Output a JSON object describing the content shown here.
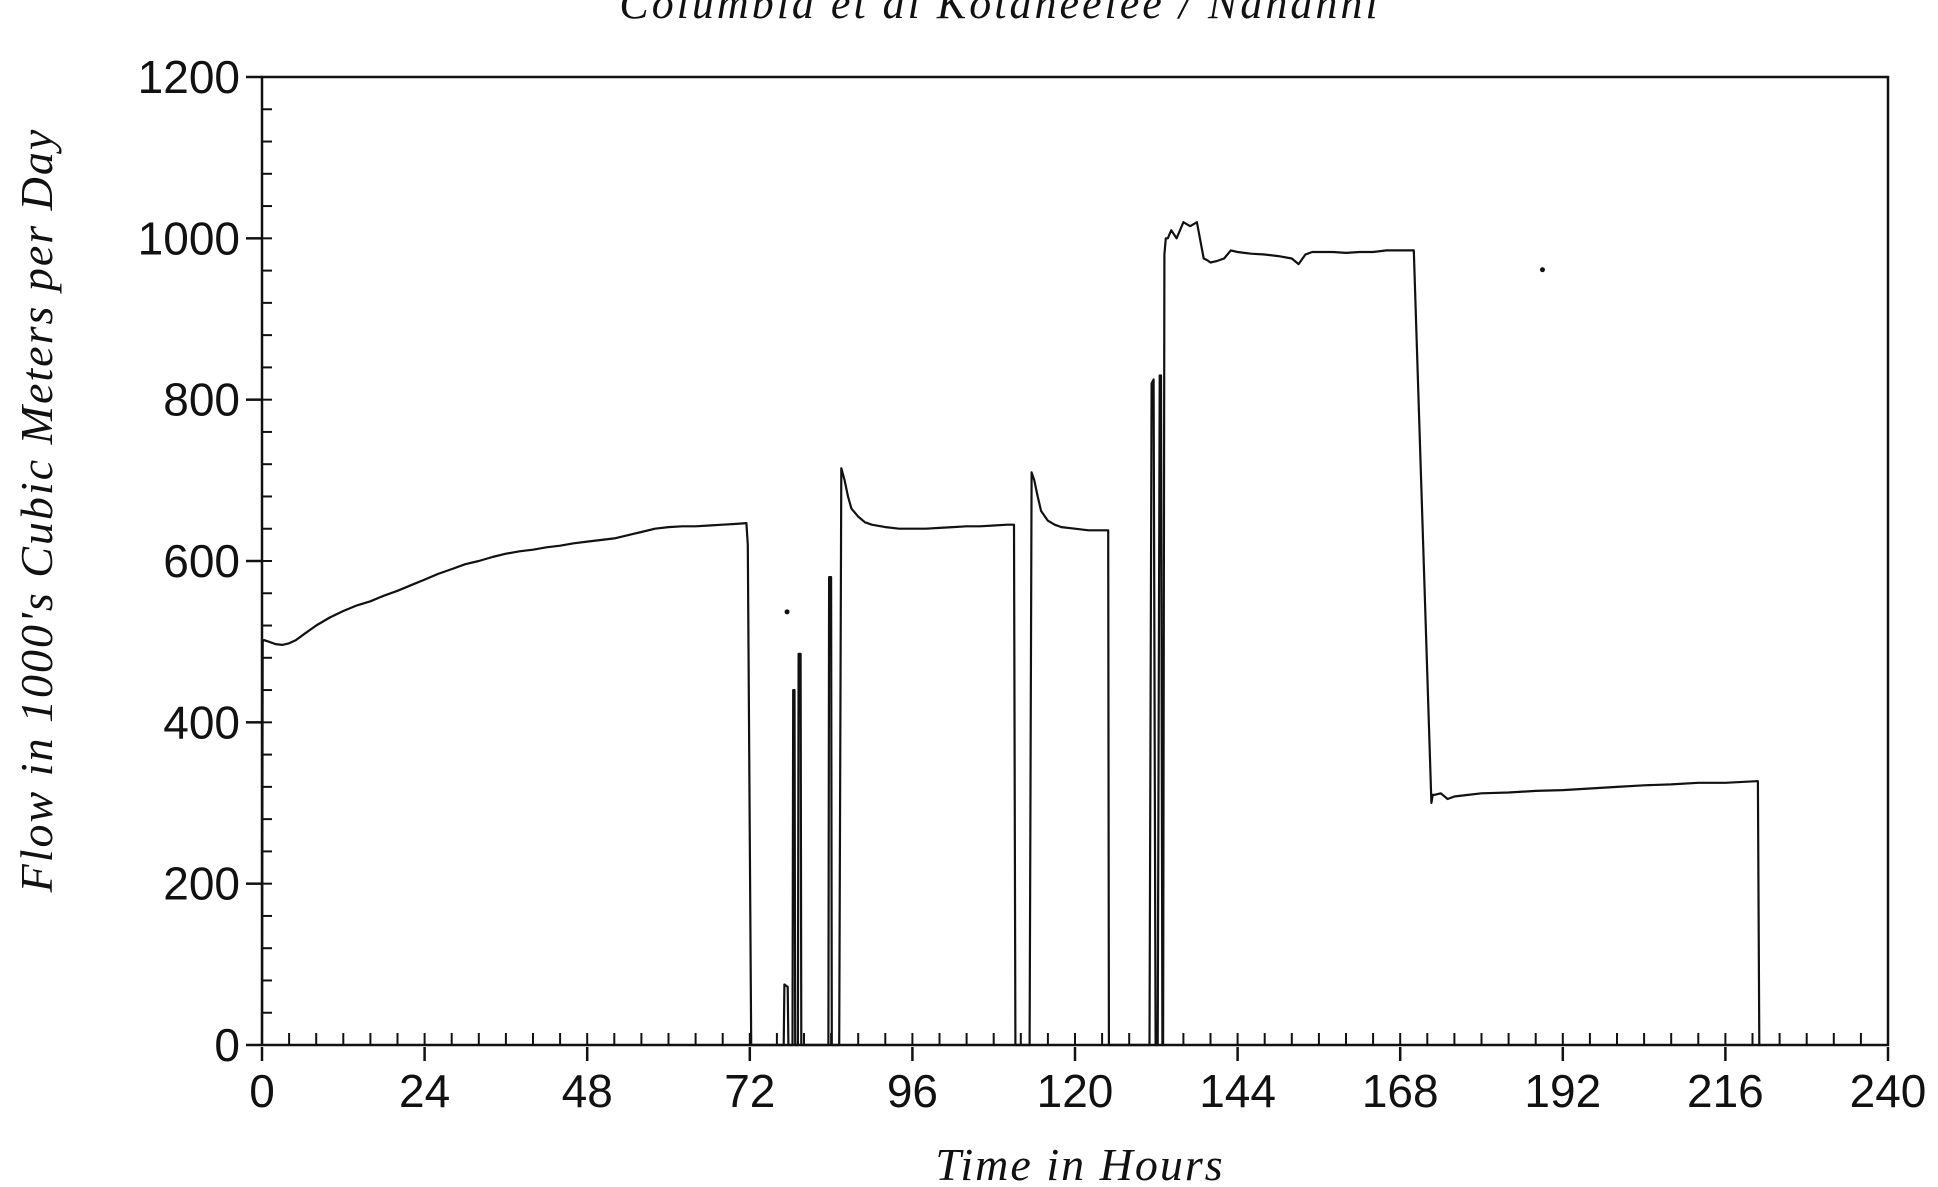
{
  "chart_data": {
    "type": "line",
    "title": "Columbia et al Kotaneelee / Nahanni",
    "xlabel": "Time in Hours",
    "ylabel": "Flow in 1000's Cubic Meters per Day",
    "xlim": [
      0,
      240
    ],
    "ylim": [
      0,
      1200
    ],
    "xticks": [
      0,
      24,
      48,
      72,
      96,
      120,
      144,
      168,
      192,
      216,
      240
    ],
    "yticks": [
      0,
      200,
      400,
      600,
      800,
      1000,
      1200
    ],
    "x_minor_step": 4,
    "y_minor_step": 40,
    "grid": false,
    "legend": "none",
    "colors": {
      "line": "#111111",
      "axis": "#111111",
      "background": "#ffffff"
    },
    "series": [
      {
        "x": [
          0,
          0.1,
          0.3,
          1,
          2,
          3,
          4,
          5,
          6,
          8,
          10,
          12,
          14,
          16,
          18,
          20,
          22,
          24,
          26,
          28,
          30,
          32,
          34,
          36,
          38,
          40,
          42,
          44,
          46,
          48,
          50,
          52,
          54,
          56,
          58,
          60,
          62,
          64,
          66,
          68,
          70,
          71.5,
          71.7,
          72.2,
          72.3,
          77.0,
          77.1,
          77.6,
          77.7,
          78.3,
          78.4,
          78.6,
          78.7,
          79.1,
          79.2,
          79.5,
          79.6,
          79.9,
          80.0,
          83.6,
          83.7,
          84.0,
          84.1,
          85.2,
          85.5,
          86.0,
          86.5,
          87.0,
          88,
          89,
          90,
          92,
          94,
          96,
          98,
          100,
          102,
          104,
          106,
          108,
          110,
          111.0,
          111.2,
          111.5,
          113.3,
          113.6,
          114.0,
          114.5,
          115.0,
          116,
          117,
          118,
          120,
          122,
          123.5,
          124.9,
          125.0,
          125.2,
          131.0,
          131.3,
          131.6,
          131.9,
          132.2,
          132.5,
          132.7,
          132.9,
          133.0,
          133.2,
          133.4,
          133.6,
          133.7,
          134.2,
          134.6,
          135,
          136,
          137,
          138,
          139,
          139.5,
          140,
          141,
          142,
          143,
          144,
          145,
          146,
          148,
          150,
          152,
          153,
          154,
          155,
          156,
          158,
          160,
          162,
          164,
          166,
          168,
          170,
          172.6,
          172.8,
          173.0,
          174,
          175,
          176,
          178,
          180,
          184,
          188,
          192,
          196,
          200,
          204,
          208,
          212,
          216,
          220.6,
          220.8,
          221.0,
          221.2
        ],
        "y": [
          0,
          500,
          502,
          500,
          497,
          496,
          498,
          502,
          508,
          520,
          530,
          538,
          545,
          550,
          557,
          563,
          570,
          577,
          584,
          590,
          596,
          600,
          605,
          609,
          612,
          614,
          617,
          619,
          622,
          624,
          626,
          628,
          632,
          636,
          640,
          642,
          643,
          643,
          644,
          645,
          646,
          647,
          620,
          0,
          0,
          0,
          75,
          72,
          0,
          0,
          440,
          440,
          0,
          0,
          485,
          485,
          0,
          0,
          0,
          0,
          580,
          580,
          0,
          0,
          715,
          700,
          680,
          665,
          655,
          648,
          645,
          642,
          640,
          640,
          640,
          641,
          642,
          643,
          643,
          644,
          645,
          645,
          0,
          0,
          0,
          710,
          700,
          680,
          662,
          650,
          645,
          642,
          640,
          638,
          638,
          638,
          0,
          0,
          0,
          820,
          825,
          0,
          0,
          830,
          830,
          0,
          0,
          980,
          1000,
          1000,
          1000,
          1010,
          1005,
          1000,
          1020,
          1015,
          1020,
          975,
          973,
          970,
          972,
          975,
          985,
          983,
          982,
          981,
          980,
          978,
          975,
          968,
          980,
          983,
          983,
          983,
          982,
          983,
          983,
          985,
          985,
          985,
          300,
          310,
          310,
          312,
          305,
          308,
          310,
          312,
          313,
          315,
          316,
          318,
          320,
          322,
          323,
          325,
          325,
          327,
          327,
          0,
          0
        ]
      }
    ],
    "markers": [
      {
        "x": 77.5,
        "y": 537
      },
      {
        "x": 189,
        "y": 961
      }
    ]
  }
}
